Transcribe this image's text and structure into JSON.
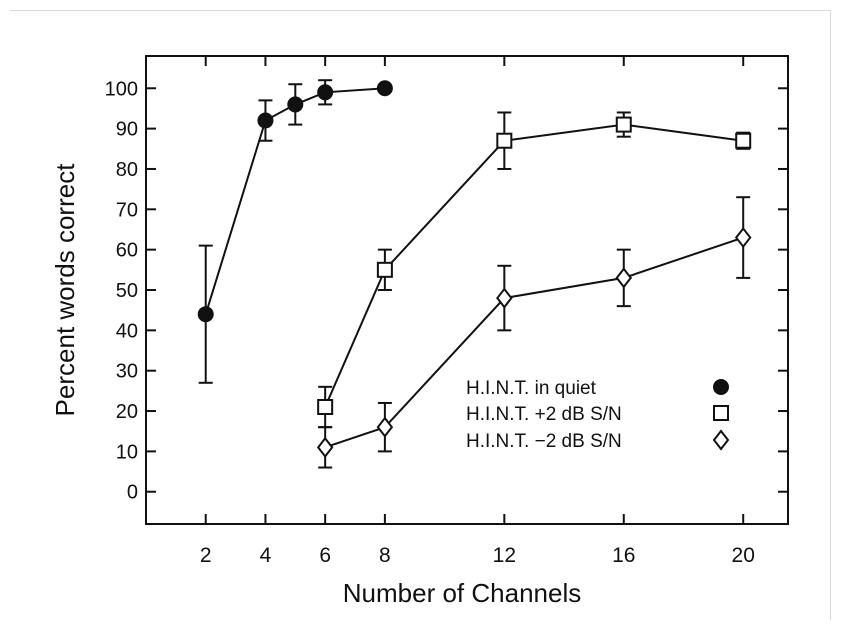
{
  "chart_data": {
    "type": "line",
    "xlabel": "Number of Channels",
    "ylabel": "Percent words correct",
    "xlim": [
      0,
      21.5
    ],
    "ylim": [
      -8,
      108
    ],
    "x_ticks": [
      2,
      4,
      6,
      8,
      12,
      16,
      20
    ],
    "y_ticks": [
      0,
      10,
      20,
      30,
      40,
      50,
      60,
      70,
      80,
      90,
      100
    ],
    "grid": false,
    "legend_position": "bottom-right",
    "series": [
      {
        "name": "H.I.N.T. in quiet",
        "marker": "filled-circle",
        "x": [
          2,
          4,
          5,
          6,
          8
        ],
        "y": [
          44,
          92,
          96,
          99,
          100
        ],
        "err_low": [
          27,
          87,
          91,
          96,
          null
        ],
        "err_high": [
          61,
          97,
          101,
          102,
          null
        ]
      },
      {
        "name": "H.I.N.T. +2 dB S/N",
        "marker": "open-square",
        "x": [
          6,
          8,
          12,
          16,
          20
        ],
        "y": [
          21,
          55,
          87,
          91,
          87
        ],
        "err_low": [
          16,
          50,
          80,
          88,
          85
        ],
        "err_high": [
          26,
          60,
          94,
          94,
          89
        ]
      },
      {
        "name": "H.I.N.T. −2 dB S/N",
        "marker": "open-diamond",
        "x": [
          6,
          8,
          12,
          16,
          20
        ],
        "y": [
          11,
          16,
          48,
          53,
          63
        ],
        "err_low": [
          6,
          10,
          40,
          46,
          53
        ],
        "err_high": [
          16,
          22,
          56,
          60,
          73
        ]
      }
    ]
  }
}
